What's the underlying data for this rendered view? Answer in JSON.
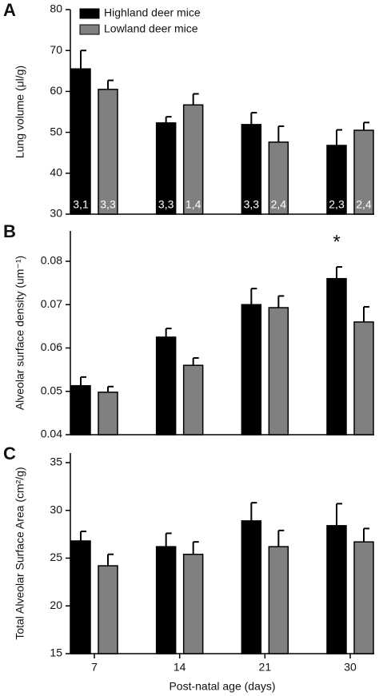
{
  "chart_data": [
    {
      "type": "bar",
      "panel": "A",
      "ylabel": "Lung volume (μl/g)",
      "ylim": [
        30,
        80
      ],
      "yticks": [
        30,
        40,
        50,
        60,
        70,
        80
      ],
      "legend": "top-left",
      "series": [
        {
          "name": "Highland deer mice",
          "color": "#000000",
          "values": [
            65.5,
            52.3,
            51.9,
            46.8
          ],
          "errors": [
            4.5,
            1.5,
            2.9,
            3.8
          ],
          "bar_labels": [
            "3,1",
            "3,3",
            "3,3",
            "2,3"
          ]
        },
        {
          "name": "Lowland deer mice",
          "color": "#808080",
          "values": [
            60.5,
            56.7,
            47.6,
            50.5
          ],
          "errors": [
            2.2,
            2.7,
            3.9,
            1.9
          ],
          "bar_labels": [
            "3,3",
            "1,4",
            "2,4",
            "2,4"
          ]
        }
      ]
    },
    {
      "type": "bar",
      "panel": "B",
      "ylabel": "Alveolar surface density (um⁻¹)",
      "ylim": [
        0.04,
        0.087
      ],
      "yticks": [
        0.04,
        0.05,
        0.06,
        0.07,
        0.08
      ],
      "annotation": "*",
      "series": [
        {
          "color": "#000000",
          "values": [
            0.0513,
            0.0625,
            0.07,
            0.076
          ],
          "errors": [
            0.002,
            0.002,
            0.0037,
            0.0027
          ]
        },
        {
          "color": "#808080",
          "values": [
            0.0498,
            0.056,
            0.0693,
            0.066
          ],
          "errors": [
            0.0013,
            0.0017,
            0.0027,
            0.0035
          ]
        }
      ]
    },
    {
      "type": "bar",
      "panel": "C",
      "ylabel": "Total Alveolar Surface Area (cm²/g)",
      "xlabel": "Post-natal age (days)",
      "categories": [
        "7",
        "14",
        "21",
        "30"
      ],
      "ylim": [
        15,
        36
      ],
      "yticks": [
        15,
        20,
        25,
        30,
        35
      ],
      "series": [
        {
          "color": "#000000",
          "values": [
            26.8,
            26.2,
            28.9,
            28.4
          ],
          "errors": [
            1.0,
            1.4,
            1.9,
            2.3
          ]
        },
        {
          "color": "#808080",
          "values": [
            24.2,
            25.4,
            26.2,
            26.7
          ],
          "errors": [
            1.2,
            1.3,
            1.7,
            1.4
          ]
        }
      ]
    }
  ]
}
